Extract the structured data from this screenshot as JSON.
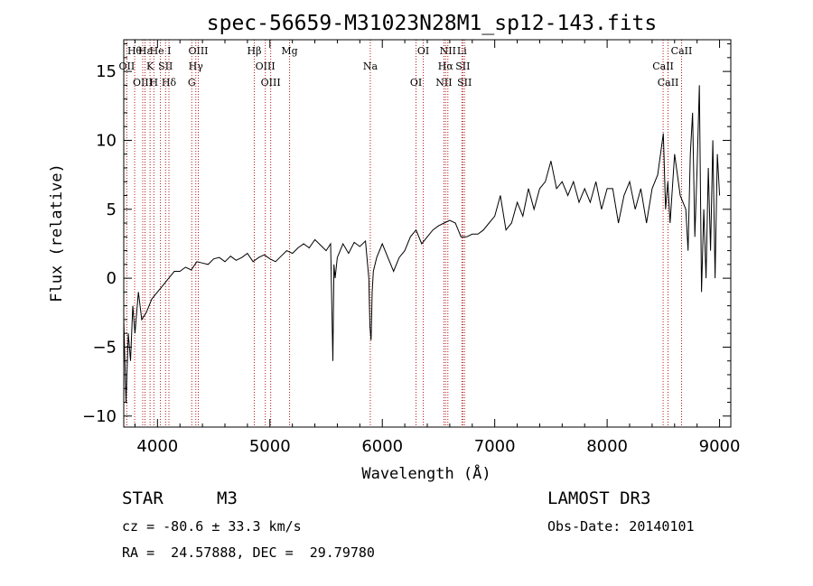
{
  "chart_data": {
    "type": "line",
    "title": "spec-56659-M31023N28M1_sp12-143.fits",
    "xlabel": "Wavelength (Å)",
    "ylabel": "Flux (relative)",
    "xlim": [
      3700,
      9100
    ],
    "ylim": [
      -10.8,
      17.3
    ],
    "x_ticks": [
      4000,
      5000,
      6000,
      7000,
      8000,
      9000
    ],
    "y_ticks": [
      -10,
      -5,
      0,
      5,
      10,
      15
    ],
    "series": [
      {
        "name": "spectrum",
        "x": [
          3700,
          3720,
          3740,
          3760,
          3780,
          3800,
          3830,
          3860,
          3900,
          3950,
          4000,
          4050,
          4100,
          4150,
          4200,
          4250,
          4300,
          4350,
          4400,
          4450,
          4500,
          4550,
          4600,
          4650,
          4700,
          4750,
          4800,
          4850,
          4900,
          4950,
          5000,
          5050,
          5100,
          5150,
          5200,
          5250,
          5300,
          5350,
          5400,
          5450,
          5500,
          5540,
          5560,
          5570,
          5580,
          5600,
          5650,
          5700,
          5750,
          5800,
          5850,
          5880,
          5890,
          5900,
          5910,
          5920,
          5950,
          6000,
          6050,
          6100,
          6150,
          6200,
          6250,
          6300,
          6350,
          6400,
          6450,
          6500,
          6550,
          6600,
          6650,
          6700,
          6750,
          6800,
          6850,
          6900,
          6950,
          7000,
          7050,
          7100,
          7150,
          7200,
          7250,
          7300,
          7350,
          7400,
          7450,
          7500,
          7550,
          7600,
          7650,
          7700,
          7750,
          7800,
          7850,
          7900,
          7950,
          8000,
          8050,
          8100,
          8150,
          8200,
          8250,
          8300,
          8350,
          8400,
          8450,
          8500,
          8520,
          8540,
          8560,
          8600,
          8650,
          8700,
          8720,
          8740,
          8760,
          8780,
          8800,
          8820,
          8840,
          8860,
          8880,
          8900,
          8920,
          8940,
          8960,
          8980,
          9000
        ],
        "y": [
          -3,
          -9,
          -4,
          -6,
          -2,
          -4,
          -1,
          -3,
          -2.5,
          -1.5,
          -1,
          -0.5,
          0,
          0.5,
          0.5,
          0.8,
          0.6,
          1.2,
          1.1,
          1,
          1.4,
          1.5,
          1.2,
          1.6,
          1.3,
          1.5,
          1.8,
          1.2,
          1.5,
          1.7,
          1.4,
          1.2,
          1.6,
          2,
          1.8,
          2.2,
          2.5,
          2.2,
          2.8,
          2.4,
          2,
          2.5,
          -6,
          1,
          0,
          1.5,
          2.5,
          1.8,
          2.6,
          2.3,
          2.7,
          0,
          -3.5,
          -4.5,
          -1,
          0.5,
          1.5,
          2.5,
          1.5,
          0.5,
          1.5,
          2,
          3,
          3.5,
          2.5,
          3,
          3.5,
          3.8,
          4,
          4.2,
          4,
          3,
          3,
          3.2,
          3.2,
          3.5,
          4,
          4.5,
          6,
          3.5,
          4,
          5.5,
          4.5,
          6.5,
          5,
          6.5,
          7,
          8.5,
          6.5,
          7,
          6,
          7,
          5.5,
          6.5,
          5.5,
          7,
          5,
          6.5,
          6.5,
          4,
          6,
          7,
          5,
          6.5,
          4,
          6.5,
          7.5,
          10.5,
          5,
          7,
          4,
          9,
          6,
          5,
          2,
          9,
          12,
          3,
          8,
          14,
          -1,
          5,
          0,
          8,
          2,
          10,
          0,
          9,
          6
        ]
      }
    ],
    "lines": [
      {
        "label": "Hθ",
        "x": 3797
      },
      {
        "label": "OII",
        "x": 3727
      },
      {
        "label": "OIII",
        "x": 3869
      },
      {
        "label": "Hε",
        "x": 3889
      },
      {
        "label": "K",
        "x": 3934
      },
      {
        "label": "H",
        "x": 3968
      },
      {
        "label": "He I",
        "x": 4026
      },
      {
        "label": "SII",
        "x": 4072
      },
      {
        "label": "Hδ",
        "x": 4102
      },
      {
        "label": "OIII",
        "x": 4363
      },
      {
        "label": "Hγ",
        "x": 4341
      },
      {
        "label": "G",
        "x": 4305
      },
      {
        "label": "Hβ",
        "x": 4861
      },
      {
        "label": "OIII",
        "x": 4959
      },
      {
        "label": "OIII",
        "x": 5007
      },
      {
        "label": "Mg",
        "x": 5175
      },
      {
        "label": "Na",
        "x": 5893
      },
      {
        "label": "OI",
        "x": 6300
      },
      {
        "label": "OI",
        "x": 6364
      },
      {
        "label": "Hα",
        "x": 6563
      },
      {
        "label": "NII",
        "x": 6548
      },
      {
        "label": "NII",
        "x": 6583
      },
      {
        "label": "SII",
        "x": 6716
      },
      {
        "label": "SII",
        "x": 6731
      },
      {
        "label": "Li",
        "x": 6708
      },
      {
        "label": "CaII",
        "x": 8498
      },
      {
        "label": "CaII",
        "x": 8542
      },
      {
        "label": "CaII",
        "x": 8662
      }
    ],
    "line_color": "#b01818",
    "curve_color": "#000000"
  },
  "info": {
    "object_class": "STAR",
    "subclass": "M3",
    "survey": "LAMOST DR3",
    "cz": "cz = -80.6 ± 33.3 km/s",
    "obs_date": "Obs-Date: 20140101",
    "radec": "RA =  24.57888, DEC =  29.79780"
  }
}
